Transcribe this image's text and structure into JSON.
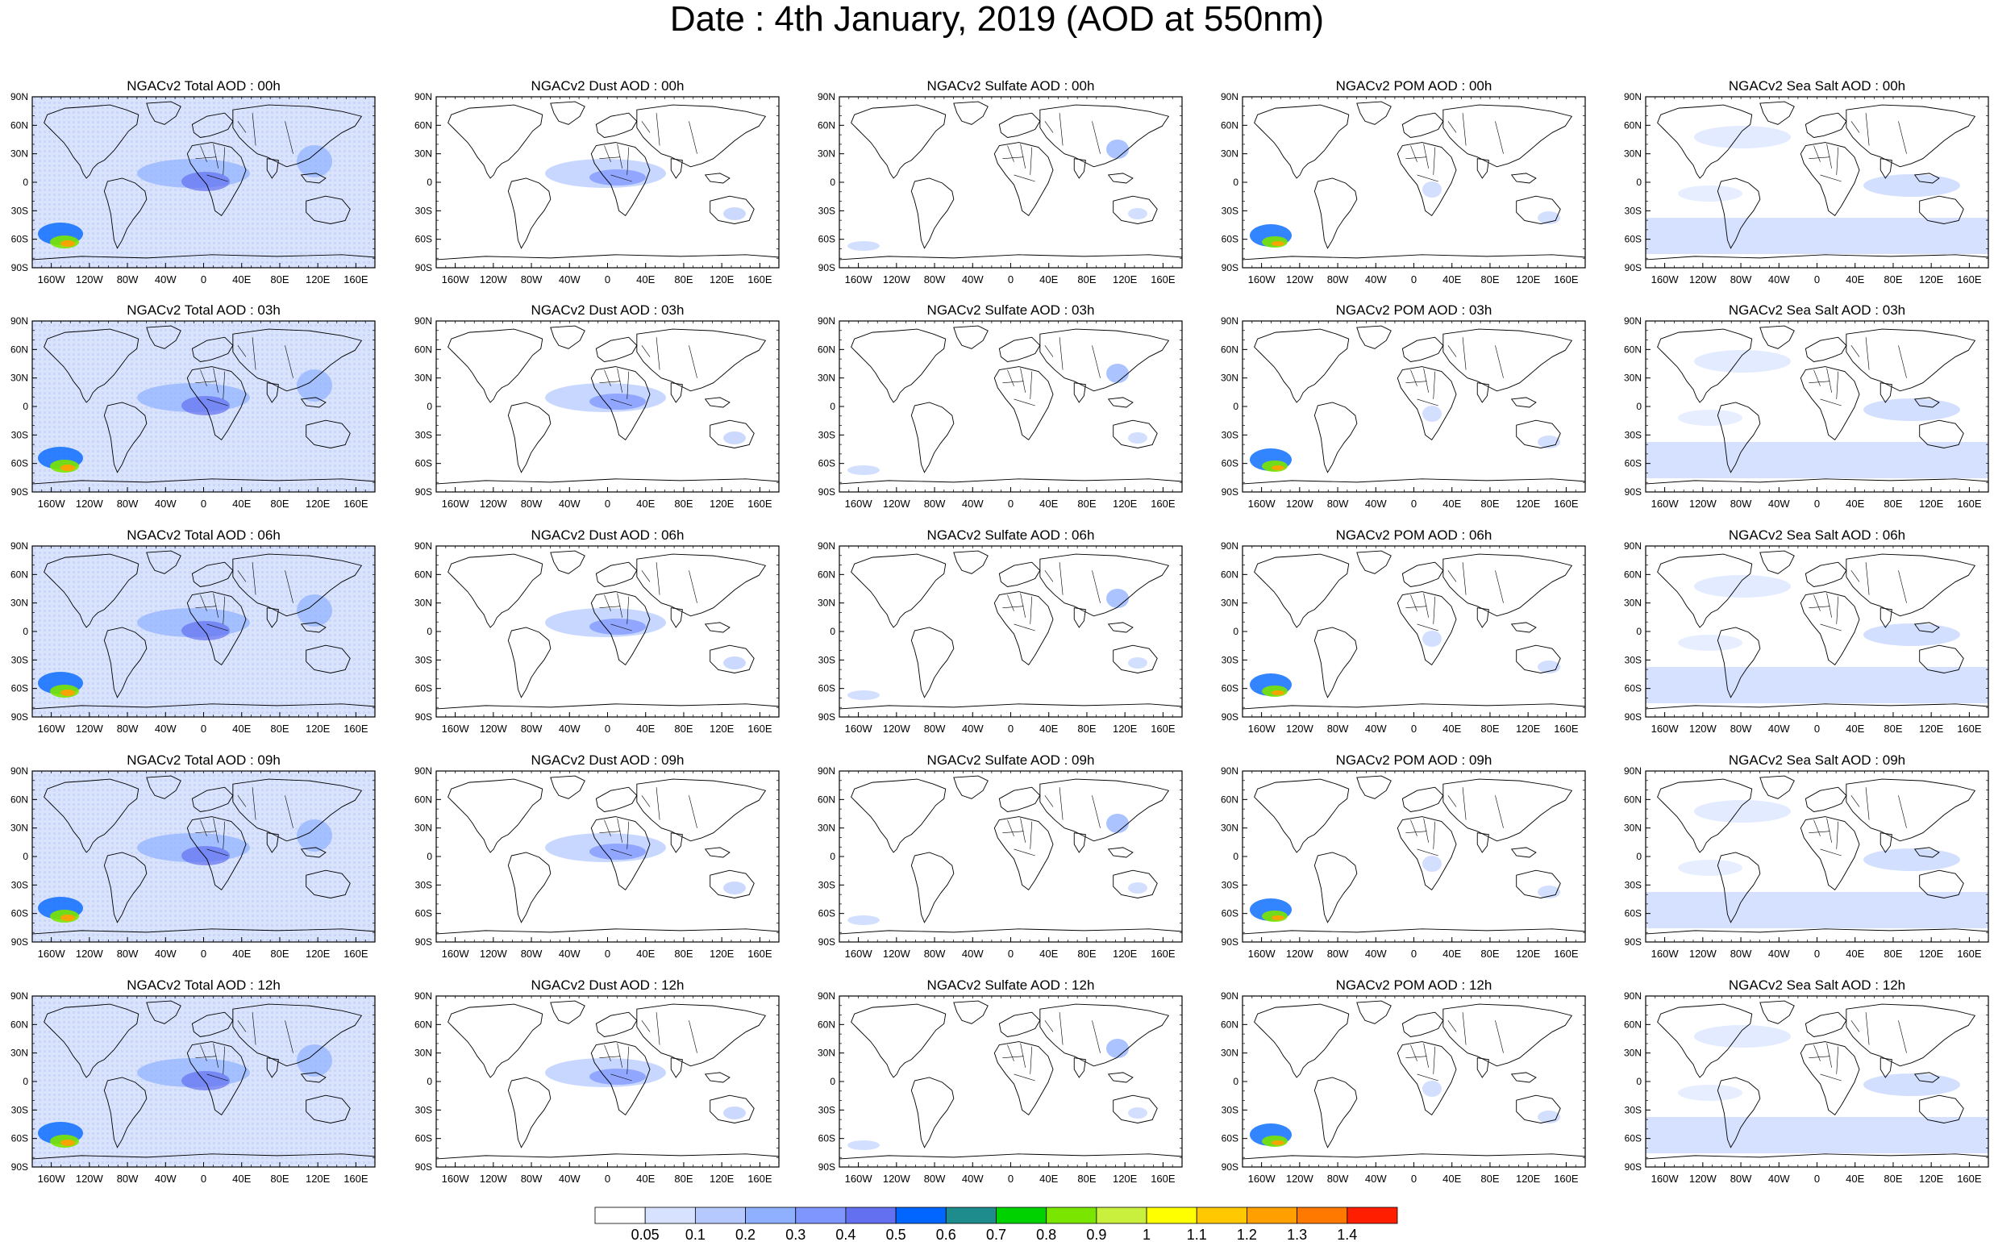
{
  "title": "Date : 4th January, 2019 (AOD at 550nm)",
  "panel_titles": [
    [
      "NGACv2 Total AOD : 00h",
      "NGACv2 Dust AOD : 00h",
      "NGACv2 Sulfate AOD : 00h",
      "NGACv2 POM AOD : 00h",
      "NGACv2 Sea Salt AOD : 00h"
    ],
    [
      "NGACv2 Total AOD : 03h",
      "NGACv2 Dust AOD : 03h",
      "NGACv2 Sulfate AOD : 03h",
      "NGACv2 POM AOD : 03h",
      "NGACv2 Sea Salt AOD : 03h"
    ],
    [
      "NGACv2 Total AOD : 06h",
      "NGACv2 Dust AOD : 06h",
      "NGACv2 Sulfate AOD : 06h",
      "NGACv2 POM AOD : 06h",
      "NGACv2 Sea Salt AOD : 06h"
    ],
    [
      "NGACv2 Total AOD : 09h",
      "NGACv2 Dust AOD : 09h",
      "NGACv2 Sulfate AOD : 09h",
      "NGACv2 POM AOD : 09h",
      "NGACv2 Sea Salt  AOD : 09h"
    ],
    [
      "NGACv2 Total AOD : 12h",
      "NGACv2 Dust AOD : 12h",
      "NGACv2 Sulfate AOD : 12h",
      "NGACv2 POM  AOD : 12h",
      "NGACv2 Sea Salt  AOD : 12h"
    ]
  ],
  "lat_ticks": [
    "90N",
    "60N",
    "30N",
    "0",
    "30S",
    "60S",
    "90S"
  ],
  "lon_ticks": [
    "160W",
    "120W",
    "80W",
    "40W",
    "0",
    "40E",
    "80E",
    "120E",
    "160E"
  ],
  "colorbar": {
    "labels": [
      "0.05",
      "0.1",
      "0.2",
      "0.3",
      "0.4",
      "0.5",
      "0.6",
      "0.7",
      "0.8",
      "0.9",
      "1",
      "1.1",
      "1.2",
      "1.3",
      "1.4"
    ],
    "colors": [
      "#ffffff",
      "#d6e2ff",
      "#b5c9ff",
      "#8fb0ff",
      "#7f96ff",
      "#6370f0",
      "#0066ff",
      "#1e8c8c",
      "#00d200",
      "#7ae600",
      "#c8f03c",
      "#ffff00",
      "#ffc800",
      "#ffa000",
      "#ff7800",
      "#ff1e00"
    ]
  }
}
